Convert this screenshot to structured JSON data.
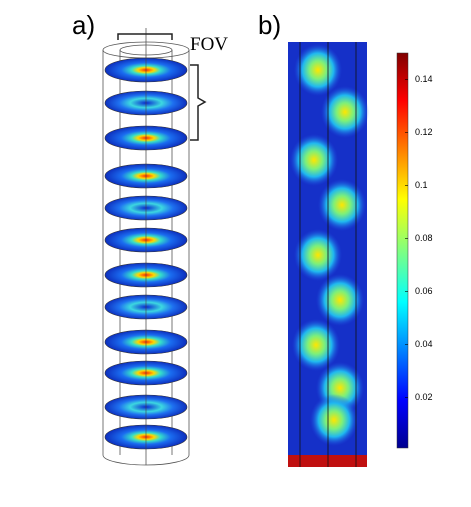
{
  "panels": [
    {
      "label": "a)"
    },
    {
      "label": "b)"
    }
  ],
  "fov_label": "FOV",
  "colorbar": {
    "lim": [
      0.001,
      0.15
    ],
    "ticks": [
      0.02,
      0.04,
      0.06,
      0.08,
      0.1,
      0.12,
      0.14
    ]
  }
}
